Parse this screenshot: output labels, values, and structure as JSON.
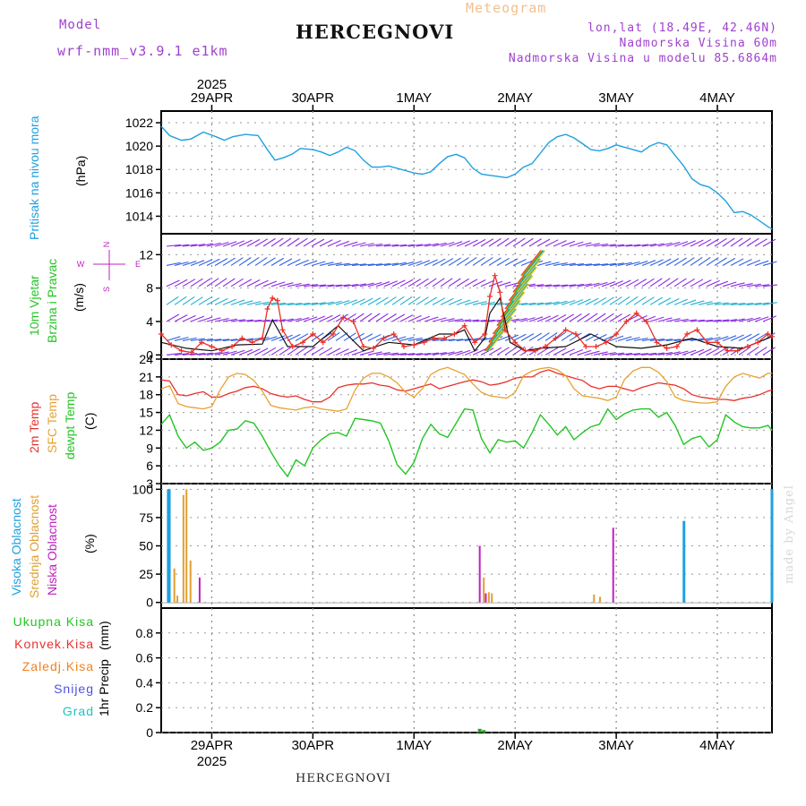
{
  "header": {
    "model_label": "Model",
    "model_name": "wrf-nmm_v3.9.1 e1km",
    "meteogram": "Meteogram",
    "station": "HERCEGNOVI",
    "coords": "lon,lat (18.49E, 42.46N)",
    "elev": "Nadmorska Visina 60m",
    "elev_model": "Nadmorska Visina u modelu 85.6864m"
  },
  "footer": {
    "station": "HERCEGNOVI",
    "credit": "made by Angel"
  },
  "colors": {
    "pressure": "#1ea0e0",
    "temp2m": "#e8302a",
    "sfc": "#e8a030",
    "dewpt": "#22c522",
    "high_cloud": "#1ea0e0",
    "mid_cloud": "#e0a030",
    "low_cloud": "#c020c0",
    "wind_speed": "#111111",
    "gust": "#e8302a",
    "total_rain": "#22a022",
    "conv_rain": "#e8302a",
    "frozen_rain": "#f08020",
    "snow": "#5050e0",
    "hail": "#20c0c0"
  },
  "chart_data": [
    {
      "type": "line",
      "panel": "pressure",
      "ylabel": "Pritisak na nivou mora",
      "unit": "(hPa)",
      "ylim": [
        1012.5,
        1023
      ],
      "yticks": [
        1014,
        1016,
        1018,
        1020,
        1022
      ],
      "x_day": [
        0,
        0.083,
        0.2,
        0.292,
        0.417,
        0.542,
        0.625,
        0.708,
        0.833,
        0.958,
        1.042,
        1.125,
        1.208,
        1.292,
        1.375,
        1.5,
        1.583,
        1.667,
        1.75,
        1.833,
        1.917,
        2.0,
        2.083,
        2.167,
        2.25,
        2.333,
        2.417,
        2.5,
        2.583,
        2.667,
        2.75,
        2.833,
        2.917,
        3.0,
        3.083,
        3.167,
        3.25,
        3.333,
        3.417,
        3.5,
        3.583,
        3.667,
        3.75,
        3.833,
        3.917,
        4.0,
        4.083,
        4.167,
        4.25,
        4.333,
        4.417,
        4.5,
        4.583,
        4.667,
        4.75,
        4.833,
        4.917,
        5.0,
        5.083,
        5.167,
        5.25,
        5.333,
        5.417,
        5.5,
        5.583,
        5.667,
        5.75,
        5.833,
        5.917,
        6.0,
        6.042
      ],
      "values": [
        1021.7,
        1020.9,
        1020.5,
        1020.6,
        1021.2,
        1020.8,
        1020.5,
        1020.8,
        1021.0,
        1020.9,
        1019.8,
        1018.8,
        1019.0,
        1019.3,
        1019.8,
        1019.7,
        1019.5,
        1019.2,
        1019.5,
        1019.9,
        1019.6,
        1018.8,
        1018.2,
        1018.2,
        1018.3,
        1018.1,
        1017.9,
        1017.7,
        1017.6,
        1017.8,
        1018.5,
        1019.1,
        1019.3,
        1019.0,
        1018.1,
        1017.6,
        1017.5,
        1017.4,
        1017.3,
        1017.6,
        1018.2,
        1018.5,
        1019.4,
        1020.3,
        1020.8,
        1021.0,
        1020.7,
        1020.2,
        1019.7,
        1019.6,
        1019.8,
        1020.1,
        1019.9,
        1019.7,
        1019.5,
        1020.0,
        1020.3,
        1020.1,
        1019.2,
        1018.3,
        1017.2,
        1016.7,
        1016.5,
        1016.0,
        1015.3,
        1014.3,
        1014.4,
        1014.1,
        1013.6,
        1013.1,
        1012.9
      ]
    },
    {
      "type": "line",
      "panel": "wind",
      "ylabel": "10m Vjetar",
      "ylabel2": "Brzina i Pravac",
      "unit": "(m/s)",
      "ylim": [
        -0.5,
        14.5
      ],
      "yticks": [
        0,
        4,
        8,
        12
      ],
      "compass": [
        "N",
        "S",
        "E",
        "W"
      ],
      "series": [
        {
          "role": "wind_speed",
          "x_day": [
            0,
            0.25,
            0.5,
            0.75,
            1.0,
            1.1,
            1.25,
            1.5,
            1.75,
            2.0,
            2.25,
            2.5,
            2.75,
            2.9,
            3.0,
            3.1,
            3.2,
            3.25,
            3.35,
            3.45,
            3.6,
            3.75,
            4.0,
            4.25,
            4.5,
            4.75,
            5.0,
            5.25,
            5.5,
            5.75,
            6.0,
            6.04
          ],
          "values": [
            1.5,
            0.8,
            0.5,
            1.2,
            1.3,
            4.2,
            1.0,
            1.0,
            3.5,
            0.5,
            1.5,
            1.2,
            2.5,
            2.5,
            3.0,
            0.5,
            2.0,
            5.0,
            6.8,
            1.5,
            0.5,
            0.8,
            1.0,
            2.5,
            1.0,
            0.8,
            1.2,
            2.0,
            1.0,
            0.8,
            2.0,
            2.2
          ]
        },
        {
          "role": "gust",
          "x_day": [
            0,
            0.1,
            0.2,
            0.3,
            0.4,
            0.5,
            0.6,
            0.7,
            0.8,
            0.9,
            1.0,
            1.05,
            1.1,
            1.15,
            1.2,
            1.3,
            1.4,
            1.5,
            1.6,
            1.7,
            1.8,
            1.9,
            2.0,
            2.1,
            2.2,
            2.3,
            2.4,
            2.5,
            2.6,
            2.7,
            2.8,
            2.9,
            3.0,
            3.1,
            3.2,
            3.25,
            3.3,
            3.35,
            3.4,
            3.5,
            3.6,
            3.7,
            3.8,
            3.9,
            4.0,
            4.1,
            4.2,
            4.3,
            4.4,
            4.5,
            4.6,
            4.7,
            4.8,
            4.9,
            5.0,
            5.1,
            5.2,
            5.3,
            5.4,
            5.5,
            5.6,
            5.7,
            5.8,
            5.9,
            6.0,
            6.04
          ],
          "values": [
            2.5,
            1.2,
            0.5,
            0.3,
            1.5,
            1.0,
            0.5,
            1.0,
            2.0,
            1.5,
            2.0,
            5.5,
            6.8,
            6.5,
            3.0,
            1.0,
            1.5,
            2.5,
            1.5,
            2.5,
            4.5,
            4.0,
            1.0,
            0.8,
            2.0,
            2.5,
            1.0,
            1.2,
            1.5,
            2.0,
            2.0,
            2.5,
            3.5,
            1.5,
            2.5,
            7.0,
            9.5,
            7.5,
            3.0,
            1.5,
            0.5,
            0.5,
            1.0,
            2.0,
            3.0,
            2.5,
            1.0,
            1.0,
            1.5,
            2.5,
            4.0,
            5.0,
            4.0,
            1.5,
            0.8,
            1.0,
            2.5,
            3.0,
            1.5,
            1.5,
            0.5,
            0.5,
            1.0,
            1.5,
            2.5,
            2.2
          ]
        }
      ]
    },
    {
      "type": "line",
      "panel": "temperature",
      "ylabel": "2m Temp",
      "ylabel2": "SFC Temp",
      "ylabel3": "dewpt Temp",
      "unit": "(C)",
      "ylim": [
        3,
        24
      ],
      "yticks": [
        3,
        6,
        9,
        12,
        15,
        18,
        21,
        24
      ],
      "series": [
        {
          "role": "temp2m",
          "x_day": [
            0,
            0.083,
            0.167,
            0.25,
            0.333,
            0.417,
            0.5,
            0.583,
            0.667,
            0.75,
            0.833,
            0.917,
            1.0,
            1.083,
            1.167,
            1.25,
            1.333,
            1.417,
            1.5,
            1.583,
            1.667,
            1.75,
            1.833,
            1.917,
            2.0,
            2.083,
            2.167,
            2.25,
            2.333,
            2.417,
            2.5,
            2.583,
            2.667,
            2.75,
            2.833,
            2.917,
            3.0,
            3.083,
            3.167,
            3.25,
            3.333,
            3.417,
            3.5,
            3.583,
            3.667,
            3.75,
            3.833,
            3.917,
            4.0,
            4.083,
            4.167,
            4.25,
            4.333,
            4.417,
            4.5,
            4.583,
            4.667,
            4.75,
            4.833,
            4.917,
            5.0,
            5.083,
            5.167,
            5.25,
            5.333,
            5.417,
            5.5,
            5.583,
            5.667,
            5.75,
            5.833,
            5.917,
            6.0,
            6.042
          ],
          "values": [
            20.5,
            20.3,
            18.0,
            17.8,
            18.2,
            18.5,
            17.6,
            17.6,
            18.2,
            18.6,
            19.2,
            19.4,
            19.0,
            18.2,
            17.8,
            17.6,
            17.8,
            17.2,
            16.8,
            16.8,
            17.6,
            19.2,
            19.6,
            19.8,
            19.8,
            20.0,
            19.6,
            19.4,
            18.8,
            18.6,
            19.0,
            19.4,
            19.8,
            19.0,
            19.4,
            19.8,
            20.2,
            20.5,
            20.2,
            19.6,
            19.8,
            20.2,
            20.8,
            21.0,
            21.0,
            21.8,
            22.2,
            21.6,
            21.2,
            20.8,
            20.4,
            19.4,
            19.0,
            19.4,
            19.4,
            19.0,
            18.6,
            19.2,
            19.6,
            20.0,
            19.8,
            19.6,
            19.0,
            18.0,
            17.6,
            17.4,
            17.2,
            17.2,
            17.0,
            17.4,
            17.6,
            18.0,
            18.6,
            18.8
          ]
        },
        {
          "role": "sfc",
          "x_day": [
            0,
            0.083,
            0.167,
            0.25,
            0.333,
            0.417,
            0.5,
            0.583,
            0.667,
            0.75,
            0.833,
            0.917,
            1.0,
            1.083,
            1.167,
            1.25,
            1.333,
            1.417,
            1.5,
            1.583,
            1.667,
            1.75,
            1.833,
            1.917,
            2.0,
            2.083,
            2.167,
            2.25,
            2.333,
            2.417,
            2.5,
            2.583,
            2.667,
            2.75,
            2.833,
            2.917,
            3.0,
            3.083,
            3.167,
            3.25,
            3.333,
            3.417,
            3.5,
            3.583,
            3.667,
            3.75,
            3.833,
            3.917,
            4.0,
            4.083,
            4.167,
            4.25,
            4.333,
            4.417,
            4.5,
            4.583,
            4.667,
            4.75,
            4.833,
            4.917,
            5.0,
            5.083,
            5.167,
            5.25,
            5.333,
            5.417,
            5.5,
            5.583,
            5.667,
            5.75,
            5.833,
            5.917,
            6.0,
            6.042
          ],
          "values": [
            19.0,
            19.5,
            16.5,
            16.0,
            15.8,
            15.6,
            16.0,
            18.8,
            21.0,
            21.6,
            21.4,
            20.4,
            18.6,
            16.2,
            15.8,
            15.6,
            15.4,
            15.8,
            16.0,
            15.6,
            15.4,
            15.2,
            15.6,
            18.8,
            20.8,
            21.6,
            21.6,
            21.0,
            20.0,
            18.4,
            17.6,
            19.0,
            21.4,
            22.2,
            22.6,
            22.0,
            21.4,
            19.8,
            18.4,
            17.8,
            17.6,
            17.4,
            18.4,
            21.2,
            22.0,
            22.4,
            22.6,
            22.2,
            21.2,
            19.0,
            17.8,
            17.6,
            17.4,
            17.0,
            17.6,
            20.6,
            22.0,
            22.6,
            22.6,
            21.8,
            20.2,
            17.6,
            17.0,
            16.8,
            16.6,
            16.6,
            16.8,
            19.4,
            21.0,
            21.6,
            21.2,
            20.8,
            21.6,
            21.6
          ]
        },
        {
          "role": "dewpt",
          "x_day": [
            0,
            0.083,
            0.167,
            0.25,
            0.333,
            0.417,
            0.5,
            0.583,
            0.667,
            0.75,
            0.833,
            0.917,
            1.0,
            1.083,
            1.167,
            1.25,
            1.333,
            1.417,
            1.5,
            1.583,
            1.667,
            1.75,
            1.833,
            1.917,
            2.0,
            2.083,
            2.167,
            2.25,
            2.333,
            2.417,
            2.5,
            2.583,
            2.667,
            2.75,
            2.833,
            2.917,
            3.0,
            3.083,
            3.167,
            3.25,
            3.333,
            3.417,
            3.5,
            3.583,
            3.667,
            3.75,
            3.833,
            3.917,
            4.0,
            4.083,
            4.167,
            4.25,
            4.333,
            4.417,
            4.5,
            4.583,
            4.667,
            4.75,
            4.833,
            4.917,
            5.0,
            5.083,
            5.167,
            5.25,
            5.333,
            5.417,
            5.5,
            5.583,
            5.667,
            5.75,
            5.833,
            5.917,
            6.0,
            6.042
          ],
          "values": [
            13.0,
            14.6,
            11.0,
            9.0,
            10.0,
            8.6,
            9.0,
            10.0,
            12.0,
            12.2,
            13.6,
            13.2,
            11.0,
            8.4,
            6.0,
            4.2,
            7.0,
            6.0,
            9.0,
            10.4,
            11.4,
            11.6,
            11.0,
            14.0,
            13.8,
            13.6,
            13.2,
            10.2,
            6.2,
            4.6,
            6.6,
            10.6,
            13.0,
            11.4,
            10.8,
            13.2,
            15.6,
            15.4,
            10.6,
            8.2,
            10.4,
            10.0,
            10.2,
            9.0,
            11.6,
            14.6,
            13.0,
            11.2,
            12.6,
            10.4,
            11.6,
            12.6,
            13.0,
            15.6,
            13.8,
            14.8,
            15.4,
            15.6,
            15.6,
            14.2,
            15.0,
            12.8,
            9.6,
            10.6,
            11.0,
            9.2,
            10.4,
            14.6,
            13.4,
            12.6,
            12.4,
            12.4,
            12.8,
            12.0
          ]
        }
      ]
    },
    {
      "type": "bar",
      "panel": "clouds",
      "ylabel": "Visoka Oblacnost",
      "ylabel2": "Srednja Oblacnost",
      "ylabel3": "Niska Oblacnost",
      "unit": "(%)",
      "ylim": [
        -5,
        105
      ],
      "yticks": [
        0,
        25,
        50,
        75,
        100
      ],
      "series": [
        {
          "role": "high_cloud",
          "x_day": [
            0.07,
            0.08,
            5.17,
            6.04
          ],
          "values": [
            100,
            100,
            72,
            100
          ]
        },
        {
          "role": "mid_cloud",
          "x_day": [
            0.13,
            0.16,
            0.22,
            0.25,
            0.29,
            3.19,
            3.24,
            3.27,
            4.28,
            4.34
          ],
          "values": [
            30,
            6,
            95,
            100,
            37,
            22,
            9,
            8,
            7,
            5
          ]
        },
        {
          "role": "low_cloud",
          "x_day": [
            0.38,
            3.15,
            3.21,
            4.47
          ],
          "values": [
            22,
            50,
            8,
            66
          ]
        }
      ]
    },
    {
      "type": "bar",
      "panel": "precip",
      "ylabel": "1hr Precip",
      "unit": "(mm)",
      "ylim": [
        0,
        1
      ],
      "yticks": [
        0,
        0.2,
        0.4,
        0.6,
        0.8
      ],
      "legend": [
        "Ukupna Kisa",
        "Konvek.Kisa",
        "Zaledj.Kisa",
        "Snijeg",
        "Grad"
      ],
      "series": [
        {
          "role": "total_rain",
          "x_day": [
            3.15,
            3.19
          ],
          "values": [
            0.03,
            0.02
          ]
        }
      ]
    }
  ],
  "x_axis": {
    "year": "2025",
    "ticks": [
      {
        "day": 0.5,
        "label": "29APR"
      },
      {
        "day": 1.5,
        "label": "30APR"
      },
      {
        "day": 2.5,
        "label": "1MAY"
      },
      {
        "day": 3.5,
        "label": "2MAY"
      },
      {
        "day": 4.5,
        "label": "3MAY"
      },
      {
        "day": 5.5,
        "label": "4MAY"
      }
    ],
    "range": [
      0,
      6.04
    ]
  }
}
